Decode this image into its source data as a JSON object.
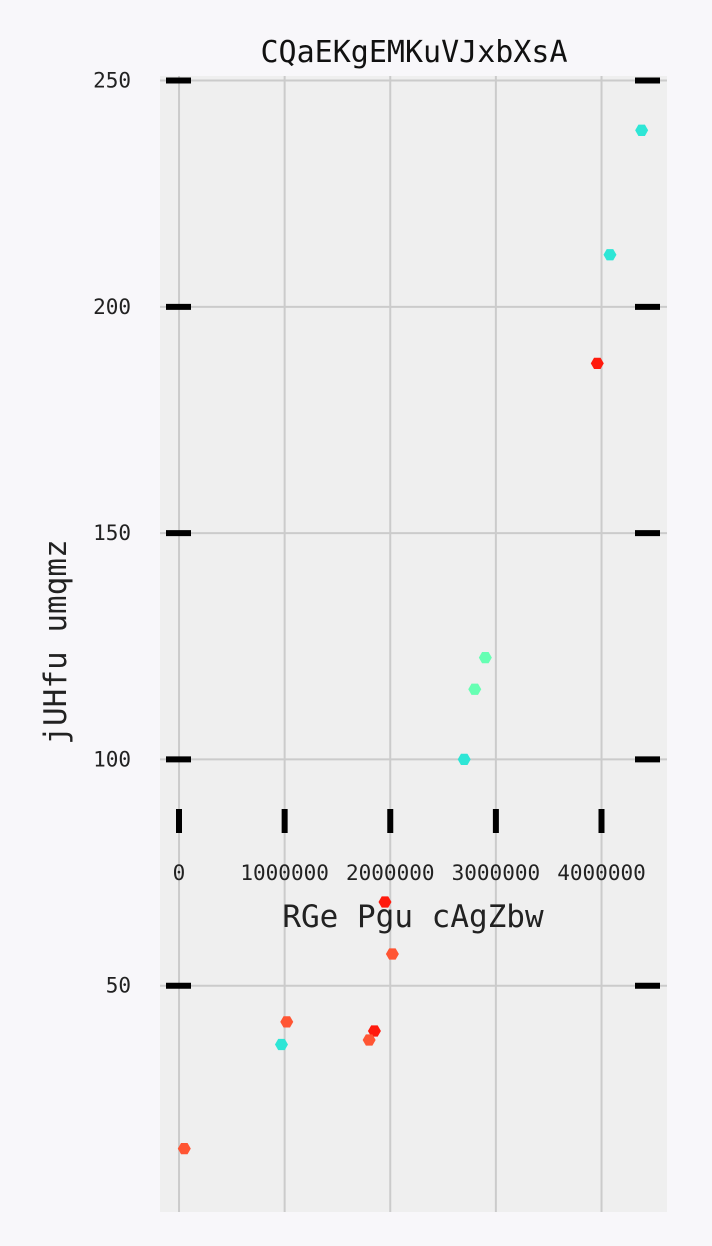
{
  "chart_data": {
    "type": "scatter",
    "title": "CQaEKgEMKuVJxbXsA",
    "xlabel": "RGe Pgu cAgZbw",
    "ylabel": "jUHfu umqmz",
    "xlim": [
      -180000,
      4620000
    ],
    "ylim": [
      0,
      251
    ],
    "x_ticks": [
      0,
      1000000,
      2000000,
      3000000,
      4000000
    ],
    "x_tick_labels": [
      "0",
      "1000000",
      "2000000",
      "3000000",
      "4000000"
    ],
    "y_ticks": [
      50,
      100,
      150,
      200,
      250
    ],
    "y_tick_labels": [
      "50",
      "100",
      "150",
      "200",
      "250"
    ],
    "grid": true,
    "legend": "none",
    "marker": "hexagon",
    "points": [
      {
        "x": 4380000,
        "y": 239,
        "color": "#2ee6d6"
      },
      {
        "x": 4080000,
        "y": 211.5,
        "color": "#2ee6d6"
      },
      {
        "x": 3960000,
        "y": 187.5,
        "color": "#ff1a0d"
      },
      {
        "x": 2900000,
        "y": 122.5,
        "color": "#66ffb3"
      },
      {
        "x": 2800000,
        "y": 115.5,
        "color": "#66ffb3"
      },
      {
        "x": 2700000,
        "y": 100,
        "color": "#2ee6d6"
      },
      {
        "x": 1950000,
        "y": 68.5,
        "color": "#ff1a0d"
      },
      {
        "x": 2020000,
        "y": 57,
        "color": "#ff5533"
      },
      {
        "x": 1020000,
        "y": 42,
        "color": "#ff5533"
      },
      {
        "x": 970000,
        "y": 37,
        "color": "#2ee6d6"
      },
      {
        "x": 1850000,
        "y": 40,
        "color": "#ff1a0d"
      },
      {
        "x": 1800000,
        "y": 38,
        "color": "#ff5533"
      },
      {
        "x": 50000,
        "y": 14,
        "color": "#ff5533"
      }
    ]
  }
}
